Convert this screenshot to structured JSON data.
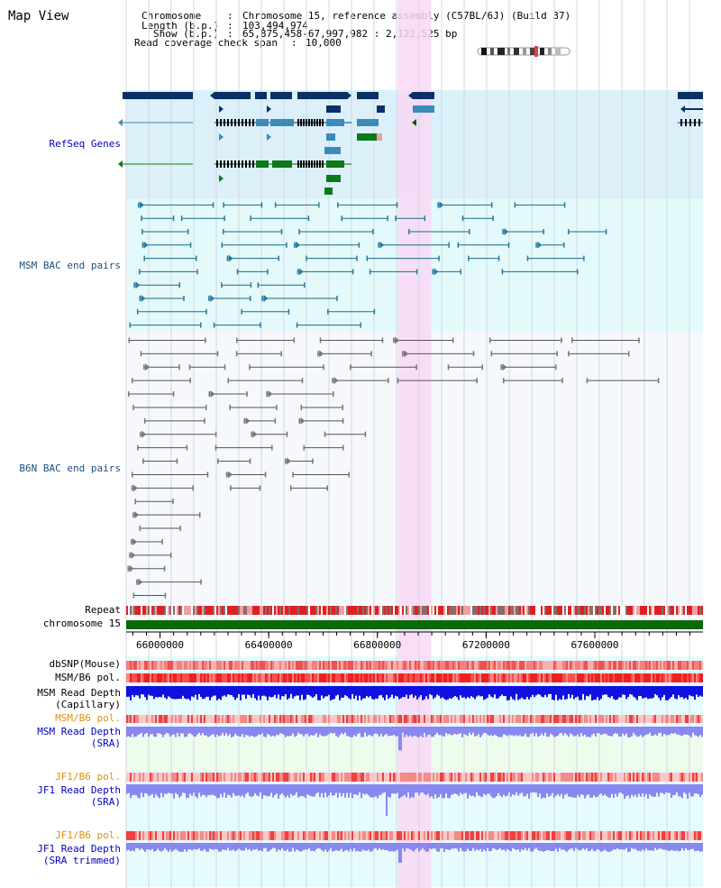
{
  "title": "Map View",
  "info": {
    "chromosome_label": "Chromosome",
    "chromosome_value": "Chromosome 15, reference assembly (C57BL/6J) (Build 37)",
    "length_label": "Length (b.p.)",
    "length_value": "103,494,974",
    "show_label": "Show (b.p.)",
    "show_value": "65,875,458-67,997,982 : 2,122,525 bp",
    "coverage_label": "Read coverage check span",
    "coverage_value": "10,000"
  },
  "view": {
    "start_bp": 65875458,
    "end_bp": 67997982,
    "highlight_start_bp": 66875000,
    "highlight_end_bp": 66998000
  },
  "tracks": {
    "refseq_genes": "RefSeq Genes",
    "msm_bac": "MSM BAC end pairs",
    "b6n_bac": "B6N BAC end pairs",
    "repeat": "Repeat",
    "chromosome": "chromosome 15",
    "dbsnp": "dbSNP(Mouse)",
    "msm_b6_pol": "MSM/B6 pol.",
    "msm_read_depth_cap_1": "MSM Read Depth",
    "msm_read_depth_cap_2": "(Capillary)",
    "msm_b6_pol_sra": "MSM/B6 pol.",
    "msm_read_depth_sra_1": "MSM Read Depth",
    "msm_read_depth_sra_2": "(SRA)",
    "jf1_b6_pol": "JF1/B6 pol.",
    "jf1_read_depth_1": "JF1 Read Depth",
    "jf1_read_depth_2": "(SRA)",
    "jf1_b6_pol_trim": "JF1/B6 pol.",
    "jf1_read_depth_trim_1": "JF1 Read Depth",
    "jf1_read_depth_trim_2": "(SRA trimmed)"
  },
  "axis": {
    "ticks": [
      {
        "bp": 66000000,
        "label": "66000000"
      },
      {
        "bp": 66400000,
        "label": "66400000"
      },
      {
        "bp": 66800000,
        "label": "66800000"
      },
      {
        "bp": 67200000,
        "label": "67200000"
      },
      {
        "bp": 67600000,
        "label": "67600000"
      }
    ]
  },
  "colors": {
    "gene_dark": "#0b3066",
    "gene_mid": "#3b8ab8",
    "gene_green": "#0c7a1a",
    "refseq_bg": "#dcf0fa",
    "bac_bg": "#e4fafa",
    "highlight": "#f8d8f4",
    "chromosome_bar": "#0a6a0a",
    "depth_blue": "#1010e0",
    "depth_light": "#8888f0"
  }
}
